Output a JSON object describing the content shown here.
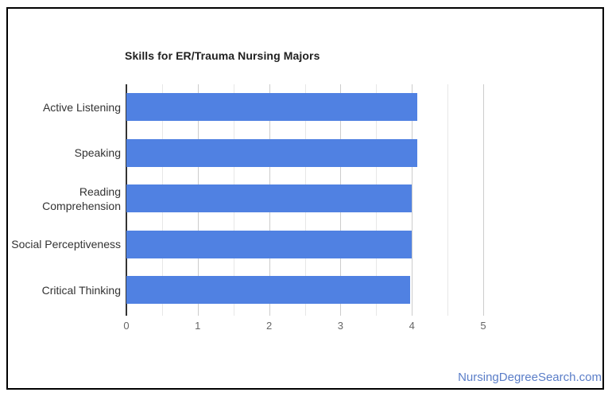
{
  "page": {
    "background": "#ffffff"
  },
  "card": {
    "border_color": "#000000",
    "background": "#ffffff"
  },
  "watermark": {
    "text": "NursingDegreeSearch.com",
    "color": "#5b7ec8"
  },
  "chart_data": {
    "type": "bar",
    "orientation": "horizontal",
    "title": "Skills for ER/Trauma Nursing Majors",
    "title_color": "#212121",
    "categories": [
      "Active Listening",
      "Speaking",
      "Reading Comprehension",
      "Social Perceptiveness",
      "Critical Thinking"
    ],
    "values": [
      4.08,
      4.08,
      4.0,
      4.0,
      3.97
    ],
    "bar_color": "#5081e2",
    "xlabel": "",
    "ylabel": "",
    "xlim": [
      0,
      5
    ],
    "x_ticks": [
      0,
      1,
      2,
      3,
      4,
      5
    ],
    "minor_gridline_step": 0.5,
    "grid": "on",
    "legend": "none",
    "gridline_color": "#cccccc",
    "minor_gridline_color": "#e7e7e7",
    "baseline_color": "#333333",
    "category_label_color": "#333333",
    "tick_label_color": "#666666"
  }
}
